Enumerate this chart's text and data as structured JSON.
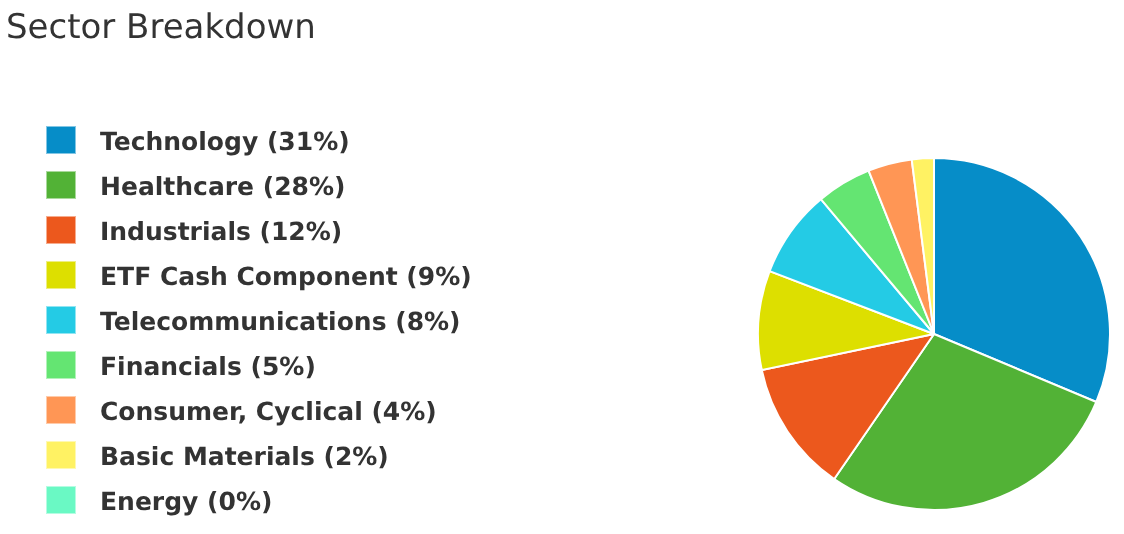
{
  "chart_data": {
    "type": "pie",
    "title": "Sector Breakdown",
    "categories": [
      "Technology (31%)",
      "Healthcare (28%)",
      "Industrials (12%)",
      "ETF Cash Component (9%)",
      "Telecommunications (8%)",
      "Financials (5%)",
      "Consumer, Cyclical (4%)",
      "Basic Materials (2%)",
      "Energy (0%)"
    ],
    "values": [
      31,
      28,
      12,
      9,
      8,
      5,
      4,
      2,
      0
    ],
    "colors": [
      "#068dc8",
      "#52b236",
      "#ec581d",
      "#dddf00",
      "#24cbe5",
      "#64e572",
      "#ff9655",
      "#fff263",
      "#6af9c4"
    ],
    "legend": "left"
  }
}
